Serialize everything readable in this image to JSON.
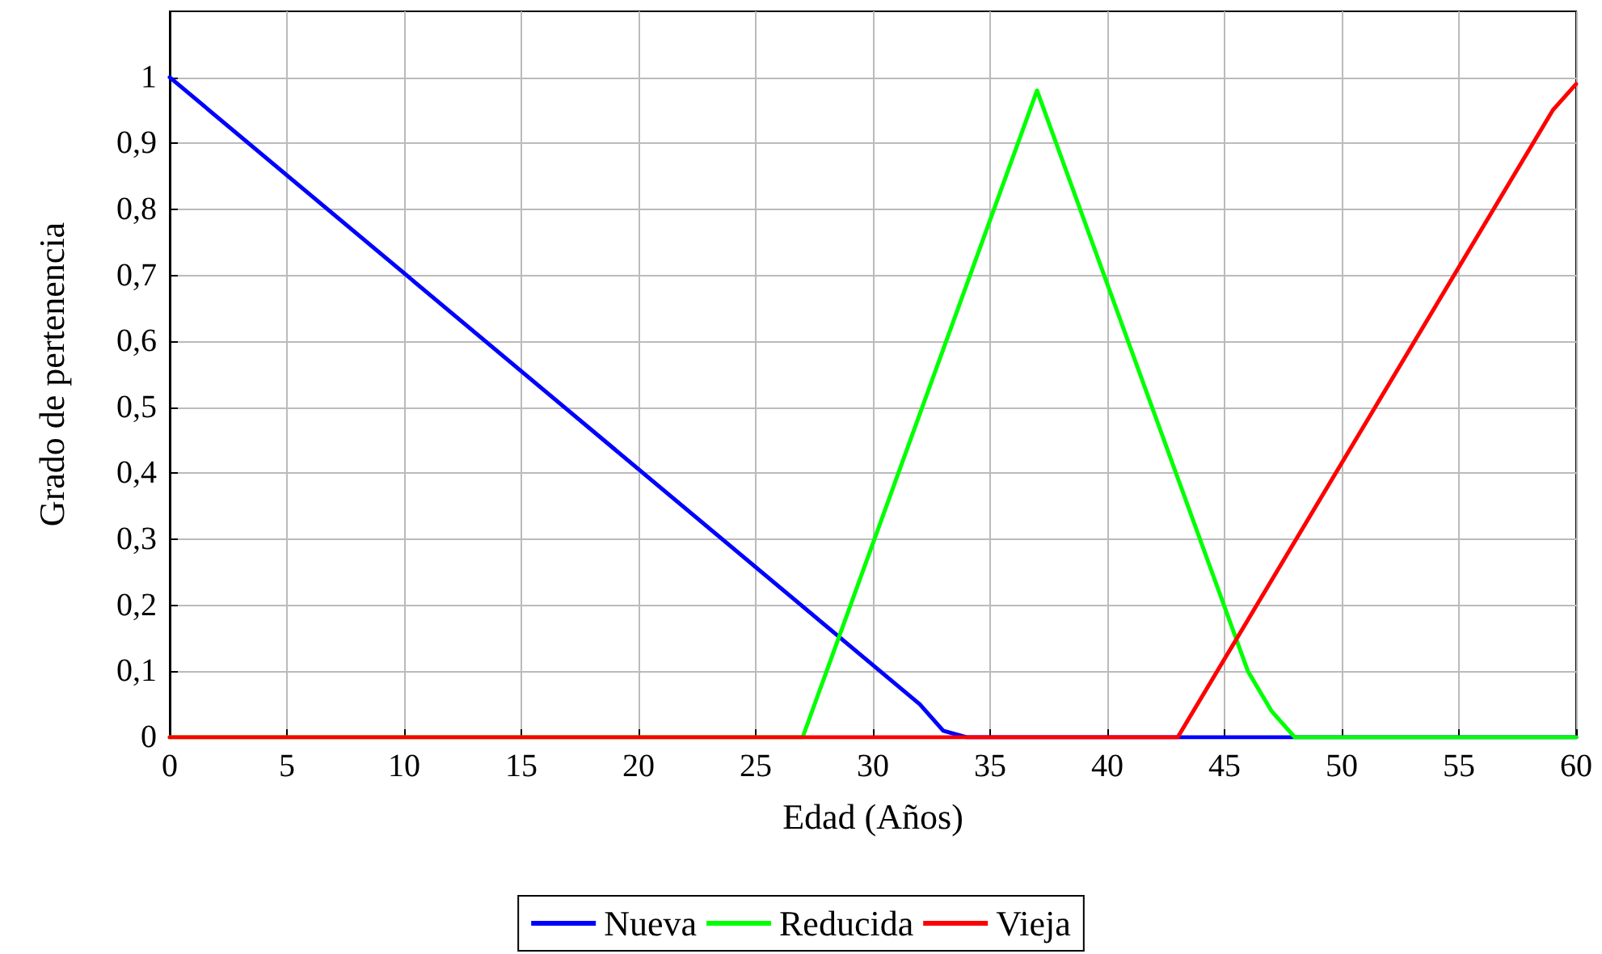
{
  "chart_data": {
    "type": "line",
    "xlabel": "Edad (Años)",
    "ylabel": "Grado de pertenencia",
    "series": [
      {
        "name": "Nueva",
        "color": "#0000ff",
        "x": [
          0,
          32,
          33,
          34,
          60
        ],
        "values": [
          1,
          0.05,
          0.01,
          0,
          0
        ]
      },
      {
        "name": "Reducida",
        "color": "#00ff00",
        "x": [
          0,
          27,
          37,
          46,
          47,
          48,
          60
        ],
        "values": [
          0,
          0,
          0.98,
          0.1,
          0.04,
          0,
          0
        ]
      },
      {
        "name": "Vieja",
        "color": "#ff0000",
        "x": [
          0,
          43,
          59,
          60
        ],
        "values": [
          0,
          0,
          0.95,
          0.99
        ]
      }
    ],
    "xlim": [
      0,
      60
    ],
    "xticks": [
      0,
      5,
      10,
      15,
      20,
      25,
      30,
      35,
      40,
      45,
      50,
      55,
      60
    ],
    "ylim": [
      0,
      1.1
    ],
    "yticks": [
      0,
      {
        "value": 0.1,
        "label": "0,1"
      },
      {
        "value": 0.2,
        "label": "0,2"
      },
      {
        "value": 0.3,
        "label": "0,3"
      },
      {
        "value": 0.4,
        "label": "0,4"
      },
      {
        "value": 0.5,
        "label": "0,5"
      },
      {
        "value": 0.6,
        "label": "0,6"
      },
      {
        "value": 0.7,
        "label": "0,7"
      },
      {
        "value": 0.8,
        "label": "0,8"
      },
      {
        "value": 0.9,
        "label": "0,9"
      },
      1
    ],
    "grid": true,
    "legend": "bottom",
    "marker": "none",
    "line_style": "solid"
  }
}
